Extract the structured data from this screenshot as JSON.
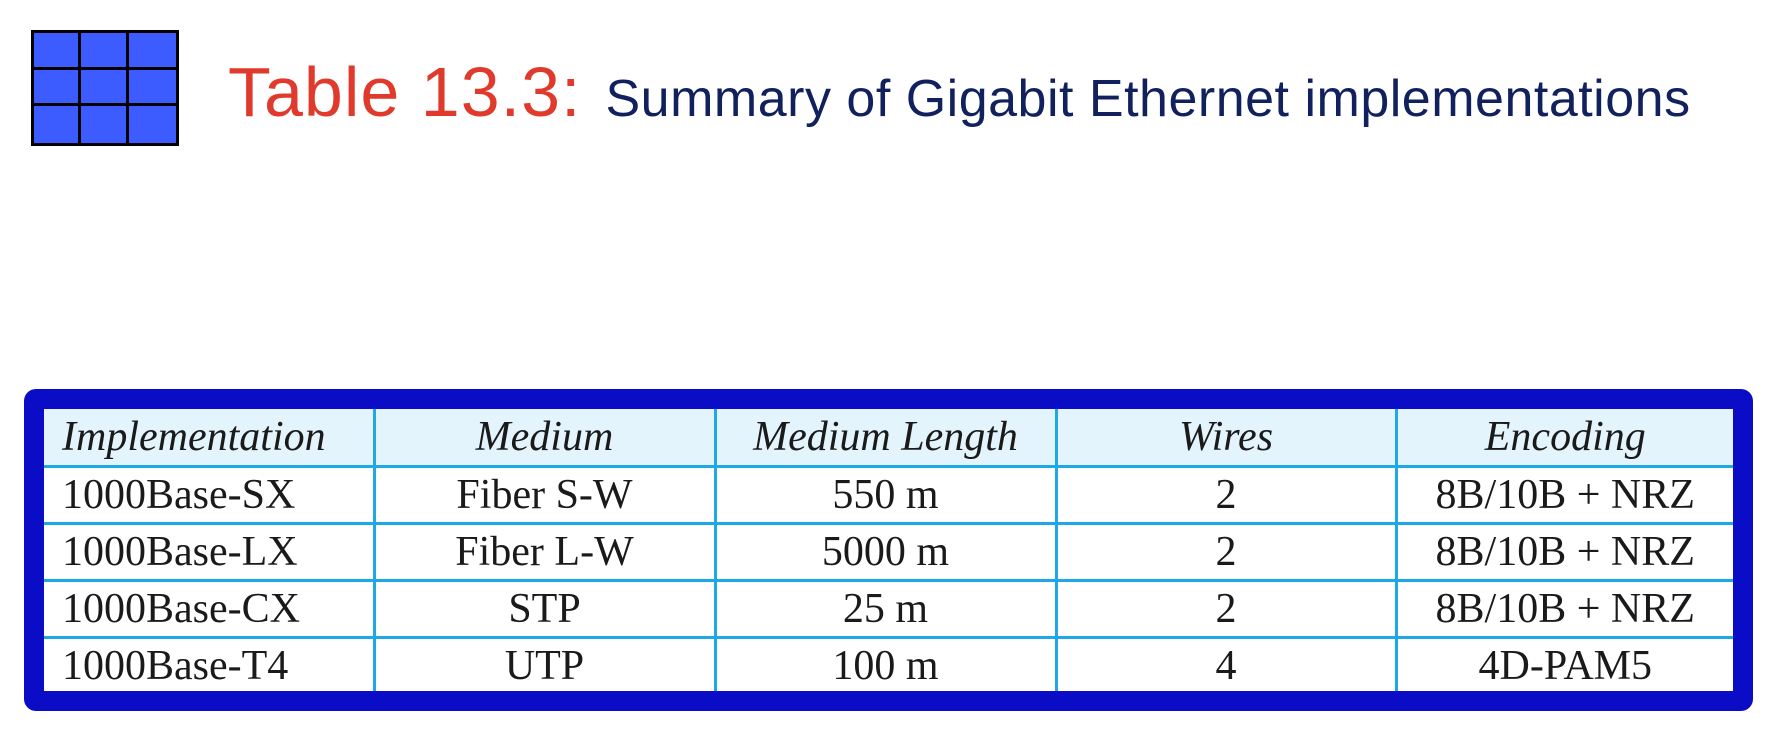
{
  "header": {
    "icon": "table-grid-icon",
    "title_prefix": "Table 13.3:",
    "title_text": "Summary of Gigabit Ethernet implementations"
  },
  "colors": {
    "title_prefix": "#e03a2c",
    "title_text": "#10215e",
    "frame": "#0a0cc6",
    "grid_lines": "#1fa8e6",
    "header_bg": "#e3f4fc",
    "icon_fill": "#3d5cff"
  },
  "table": {
    "columns": [
      "Implementation",
      "Medium",
      "Medium Length",
      "Wires",
      "Encoding"
    ],
    "rows": [
      [
        "1000Base-SX",
        "Fiber S-W",
        "550 m",
        "2",
        "8B/10B + NRZ"
      ],
      [
        "1000Base-LX",
        "Fiber L-W",
        "5000 m",
        "2",
        "8B/10B + NRZ"
      ],
      [
        "1000Base-CX",
        "STP",
        "25 m",
        "2",
        "8B/10B + NRZ"
      ],
      [
        "1000Base-T4",
        "UTP",
        "100 m",
        "4",
        "4D-PAM5"
      ]
    ]
  }
}
